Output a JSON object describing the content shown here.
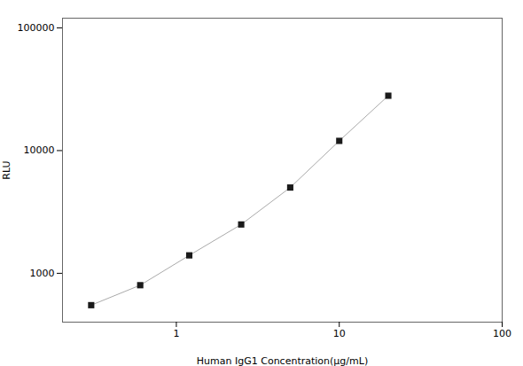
{
  "chart_data": {
    "type": "line",
    "xlabel": "Human IgG1 Concentration(μg/mL)",
    "ylabel": "RLU",
    "x": [
      0.3,
      0.6,
      1.2,
      2.5,
      5.0,
      10.0,
      20.0
    ],
    "series": [
      {
        "name": "RLU",
        "color": "#aaaaaa",
        "marker": "square",
        "line_style": "solid",
        "values": [
          550,
          800,
          1400,
          2500,
          5000,
          12000,
          28000
        ]
      }
    ],
    "log": true,
    "xlim": [
      0.2,
      100
    ],
    "ylim": [
      400,
      120000
    ],
    "xticks": [
      1,
      10,
      100
    ],
    "yticks": [
      1000,
      10000,
      100000
    ],
    "grid": false
  }
}
